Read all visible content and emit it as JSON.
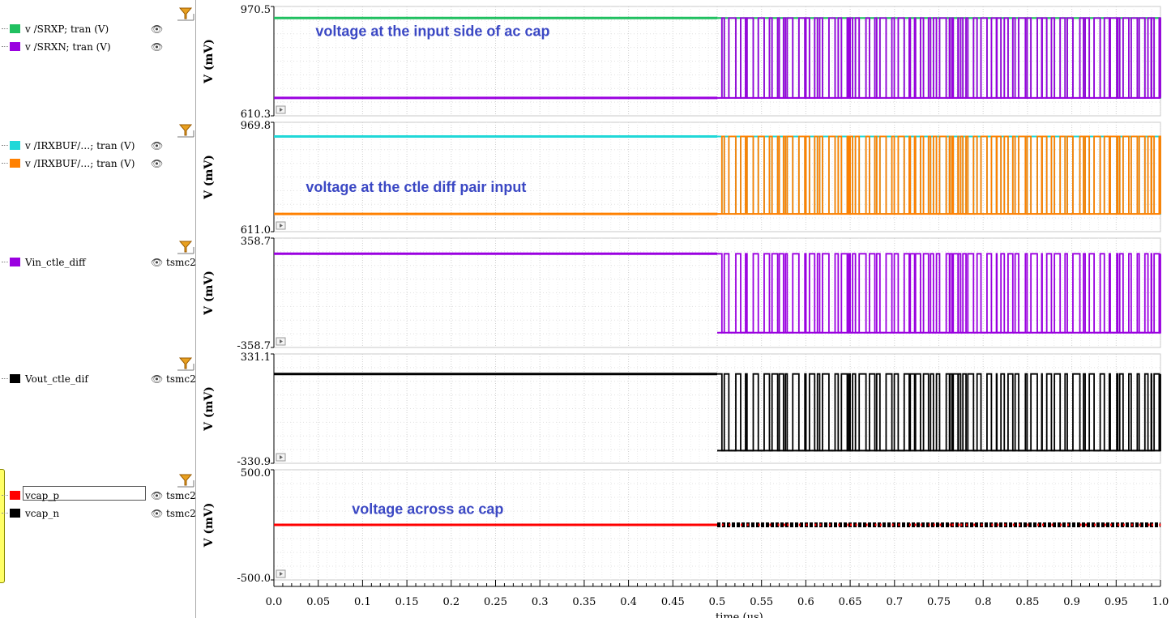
{
  "legend_groups": [
    {
      "entries": [
        {
          "swatch": "#20c060",
          "label": "v /SRXP; tran (V)"
        },
        {
          "swatch": "#9a00e0",
          "label": "v /SRXN; tran (V)"
        }
      ]
    },
    {
      "entries": [
        {
          "swatch": "#20d8d8",
          "label": "v /IRXBUF/…; tran (V)"
        },
        {
          "swatch": "#ff8000",
          "label": "v /IRXBUF/…; tran (V)"
        }
      ]
    },
    {
      "entries": [
        {
          "swatch": "#9a00e0",
          "label": "Vin_ctle_diff",
          "extra": "tsmc2"
        }
      ]
    },
    {
      "entries": [
        {
          "swatch": "#000000",
          "label": "Vout_ctle_dif",
          "extra": "tsmc2"
        }
      ]
    },
    {
      "entries": [
        {
          "swatch": "#ff0000",
          "label": "vcap_p",
          "extra": "tsmc2"
        },
        {
          "swatch": "#000000",
          "label": "vcap_n",
          "extra": "tsmc2"
        }
      ]
    }
  ],
  "chart_data": [
    {
      "type": "line",
      "ylabel": "V (mV)",
      "ylim": [
        610.3,
        970.5
      ],
      "tick_labels": [
        "970.5",
        "610.3"
      ],
      "annotation": "voltage at the input side of ac cap",
      "annotation_t": 0.047,
      "annotation_v": 888,
      "series": [
        {
          "color": "#20c060",
          "init": 960,
          "alt": 640,
          "tail_rail": "high"
        },
        {
          "color": "#9a00e0",
          "init": 640,
          "alt": 960,
          "tail_rail": "low"
        }
      ]
    },
    {
      "type": "line",
      "ylabel": "V (mV)",
      "ylim": [
        611.0,
        969.8
      ],
      "tick_labels": [
        "969.8",
        "611.0"
      ],
      "annotation": "voltage at the ctle diff pair input",
      "annotation_t": 0.036,
      "annotation_v": 728,
      "series": [
        {
          "color": "#20d8d8",
          "init": 952,
          "alt": 640,
          "tail_rail": "high"
        },
        {
          "color": "#ff8000",
          "init": 640,
          "alt": 952,
          "tail_rail": "low"
        }
      ]
    },
    {
      "type": "line",
      "ylabel": "V (mV)",
      "ylim": [
        -358.7,
        358.7
      ],
      "tick_labels": [
        "358.7",
        "-358.7"
      ],
      "annotation": "",
      "series": [
        {
          "color": "#9a00e0",
          "init": 312,
          "alt": -312,
          "tail_rail": "low"
        }
      ]
    },
    {
      "type": "line",
      "ylabel": "V (mV)",
      "ylim": [
        -330.9,
        331.1
      ],
      "tick_labels": [
        "331.1",
        "-330.9"
      ],
      "annotation": "",
      "series": [
        {
          "color": "#000000",
          "init": 290,
          "alt": -290,
          "tail_rail": "low"
        }
      ]
    },
    {
      "type": "line",
      "ylabel": "V (mV)",
      "ylim": [
        -500.0,
        500.0
      ],
      "tick_labels": [
        "500.0",
        "-500.0"
      ],
      "annotation": "voltage across ac cap",
      "annotation_t": 0.088,
      "annotation_v": 115,
      "series": [
        {
          "color": "#000000",
          "init": 0,
          "near_zero_after_switch": true
        },
        {
          "color": "#ff0000",
          "init": 0,
          "near_zero_after_switch": true,
          "dots": true
        }
      ]
    }
  ],
  "x_axis": {
    "label": "time (us)",
    "range": [
      0.0,
      1.0
    ],
    "switch_time": 0.5,
    "ticks": [
      "0.0",
      "0.05",
      "0.1",
      "0.15",
      "0.2",
      "0.25",
      "0.3",
      "0.35",
      "0.4",
      "0.45",
      "0.5",
      "0.55",
      "0.6",
      "0.65",
      "0.7",
      "0.75",
      "0.8",
      "0.85",
      "0.9",
      "0.95",
      "1.0"
    ]
  }
}
